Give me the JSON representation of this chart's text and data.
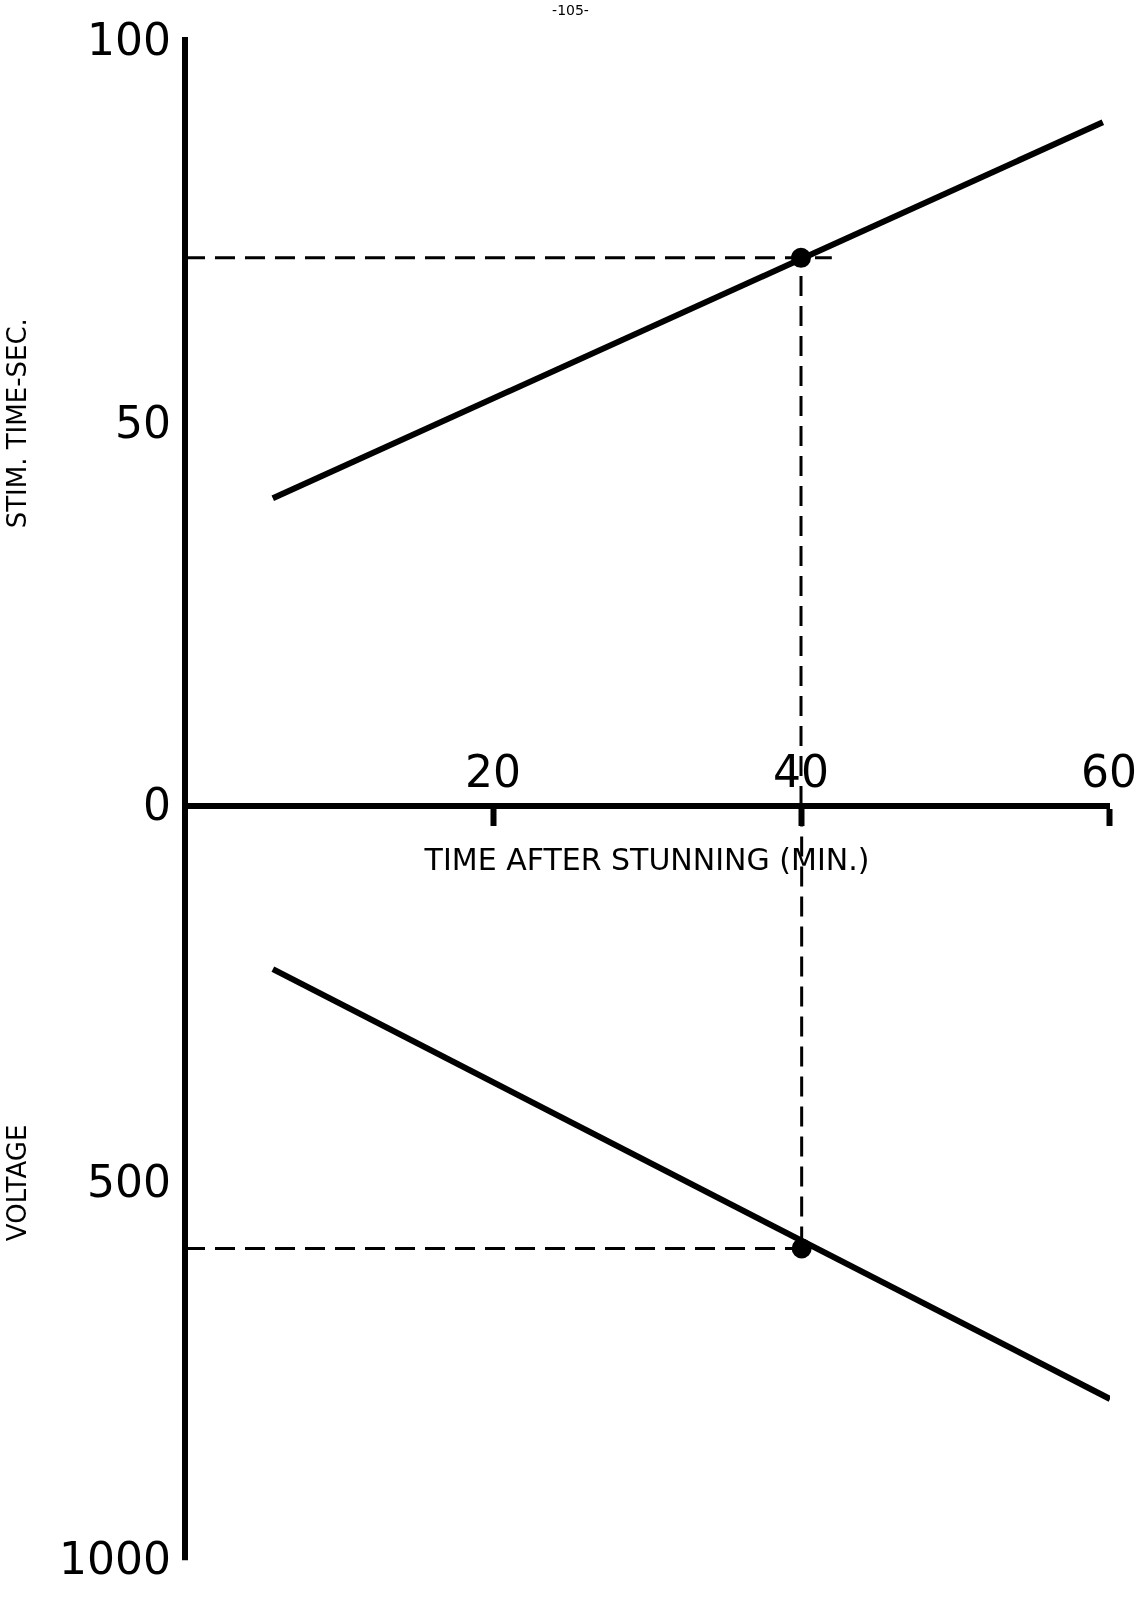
{
  "chart_data": [
    {
      "type": "line",
      "ylabel": "STIM. TIME-SEC.",
      "xlabel": "TIME AFTER STUNNING (MIN.)",
      "annotations": [
        "-105-"
      ],
      "xlim": [
        0,
        60
      ],
      "xticks": [
        20,
        40,
        60
      ],
      "ylim": [
        0,
        100
      ],
      "yticks": [
        0,
        50,
        100
      ],
      "line_style": "solid",
      "series": [
        {
          "color": "#000000",
          "x": [
            5.7,
            59.6
          ],
          "values": [
            40.2,
            89.3
          ]
        },
        {
          "color": "#000000",
          "line_style": "dashed",
          "x": [
            0,
            42
          ],
          "values": [
            71.6,
            71.6
          ]
        },
        {
          "color": "#000000",
          "line_style": "dashed",
          "x": [
            40,
            40
          ],
          "values": [
            0,
            71.6
          ]
        },
        {
          "color": "#000000",
          "type": "scatter",
          "marker": "circle",
          "x": [
            40
          ],
          "values": [
            71.6
          ]
        }
      ]
    },
    {
      "type": "line",
      "ylabel": "VOLTAGE",
      "xlim": [
        0,
        60
      ],
      "ylim": [
        1000,
        0
      ],
      "yticks": [
        500,
        1000
      ],
      "tick_labels": "y",
      "line_style": "solid",
      "series": [
        {
          "color": "#000000",
          "x": [
            5.7,
            60
          ],
          "values": [
            216,
            787
          ]
        },
        {
          "color": "#000000",
          "line_style": "dashed",
          "x": [
            40,
            40
          ],
          "values": [
            0,
            587
          ]
        },
        {
          "color": "#000000",
          "line_style": "dashed",
          "x": [
            0,
            40
          ],
          "values": [
            587,
            587
          ]
        },
        {
          "color": "#000000",
          "type": "scatter",
          "marker": "circle",
          "x": [
            40
          ],
          "values": [
            587
          ]
        }
      ]
    }
  ]
}
